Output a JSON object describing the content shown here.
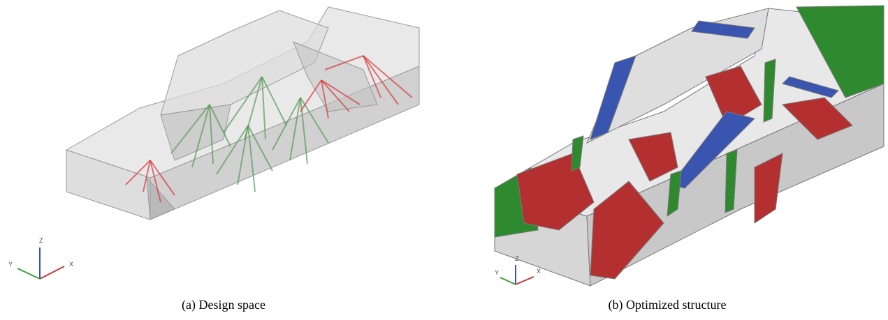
{
  "figures": [
    {
      "caption": "(a) Design space",
      "axes": [
        "Z",
        "Y",
        "X"
      ]
    },
    {
      "caption": "(b) Optimized structure",
      "axes": [
        "Z",
        "Y",
        "X"
      ]
    }
  ]
}
